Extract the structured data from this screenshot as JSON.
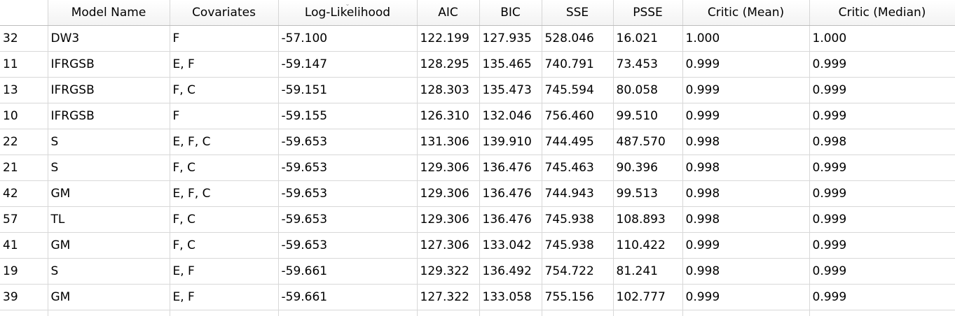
{
  "table": {
    "columns": [
      {
        "key": "index",
        "label": ""
      },
      {
        "key": "model",
        "label": "Model Name"
      },
      {
        "key": "covariates",
        "label": "Covariates"
      },
      {
        "key": "loglik",
        "label": "Log-Likelihood"
      },
      {
        "key": "aic",
        "label": "AIC"
      },
      {
        "key": "bic",
        "label": "BIC"
      },
      {
        "key": "sse",
        "label": "SSE"
      },
      {
        "key": "psse",
        "label": "PSSE"
      },
      {
        "key": "critic_mean",
        "label": "Critic (Mean)"
      },
      {
        "key": "critic_median",
        "label": "Critic (Median)"
      }
    ],
    "sort_indicator": "⌄",
    "rows": [
      [
        "32",
        "DW3",
        "F",
        "-57.100",
        "122.199",
        "127.935",
        "528.046",
        "16.021",
        "1.000",
        "1.000"
      ],
      [
        "11",
        "IFRGSB",
        "E, F",
        "-59.147",
        "128.295",
        "135.465",
        "740.791",
        "73.453",
        "0.999",
        "0.999"
      ],
      [
        "13",
        "IFRGSB",
        "F, C",
        "-59.151",
        "128.303",
        "135.473",
        "745.594",
        "80.058",
        "0.999",
        "0.999"
      ],
      [
        "10",
        "IFRGSB",
        "F",
        "-59.155",
        "126.310",
        "132.046",
        "756.460",
        "99.510",
        "0.999",
        "0.999"
      ],
      [
        "22",
        "S",
        "E, F, C",
        "-59.653",
        "131.306",
        "139.910",
        "744.495",
        "487.570",
        "0.998",
        "0.998"
      ],
      [
        "21",
        "S",
        "F, C",
        "-59.653",
        "129.306",
        "136.476",
        "745.463",
        "90.396",
        "0.998",
        "0.999"
      ],
      [
        "42",
        "GM",
        "E, F, C",
        "-59.653",
        "129.306",
        "136.476",
        "744.943",
        "99.513",
        "0.998",
        "0.999"
      ],
      [
        "57",
        "TL",
        "F, C",
        "-59.653",
        "129.306",
        "136.476",
        "745.938",
        "108.893",
        "0.998",
        "0.999"
      ],
      [
        "41",
        "GM",
        "F, C",
        "-59.653",
        "127.306",
        "133.042",
        "745.938",
        "110.422",
        "0.999",
        "0.999"
      ],
      [
        "19",
        "S",
        "E, F",
        "-59.661",
        "129.322",
        "136.492",
        "754.722",
        "81.241",
        "0.998",
        "0.999"
      ],
      [
        "39",
        "GM",
        "E, F",
        "-59.661",
        "127.322",
        "133.058",
        "755.156",
        "102.777",
        "0.999",
        "0.999"
      ]
    ]
  }
}
